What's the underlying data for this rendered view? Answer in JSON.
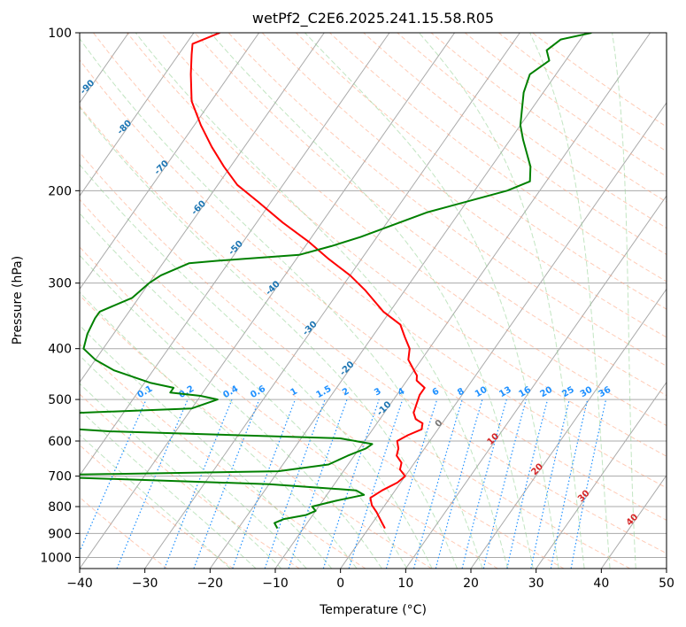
{
  "chart_data": {
    "type": "skew-t",
    "title": "wetPf2_C2E6.2025.241.15.58.R05",
    "xlabel": "Temperature (°C)",
    "ylabel": "Pressure (hPa)",
    "xlim": [
      -40,
      50
    ],
    "ylim": [
      1050,
      100
    ],
    "x_ticks": [
      -40,
      -30,
      -20,
      -10,
      0,
      10,
      20,
      30,
      40,
      50
    ],
    "x_tick_labels": [
      "−40",
      "−30",
      "−20",
      "−10",
      "0",
      "10",
      "20",
      "30",
      "40",
      "50"
    ],
    "y_ticks": [
      100,
      200,
      300,
      400,
      500,
      600,
      700,
      800,
      900,
      1000
    ],
    "y_tick_labels": [
      "100",
      "200",
      "300",
      "400",
      "500",
      "600",
      "700",
      "800",
      "900",
      "1000"
    ],
    "series": [
      {
        "name": "Temperature",
        "color": "#ff0000",
        "points": [
          [
            2.5,
            880
          ],
          [
            1.5,
            860
          ],
          [
            -0.5,
            820
          ],
          [
            -2,
            795
          ],
          [
            -3,
            770
          ],
          [
            -2,
            745
          ],
          [
            -0.5,
            720
          ],
          [
            0,
            700
          ],
          [
            -1.5,
            680
          ],
          [
            -2,
            660
          ],
          [
            -3.5,
            640
          ],
          [
            -4,
            620
          ],
          [
            -5,
            600
          ],
          [
            -4,
            585
          ],
          [
            -2.5,
            570
          ],
          [
            -3,
            555
          ],
          [
            -4.5,
            545
          ],
          [
            -5.5,
            530
          ],
          [
            -6,
            510
          ],
          [
            -6.5,
            490
          ],
          [
            -6.5,
            475
          ],
          [
            -8.5,
            460
          ],
          [
            -9,
            450
          ],
          [
            -10,
            440
          ],
          [
            -12,
            420
          ],
          [
            -13,
            400
          ],
          [
            -15,
            380
          ],
          [
            -17,
            360
          ],
          [
            -21,
            340
          ],
          [
            -26,
            310
          ],
          [
            -30,
            290
          ],
          [
            -35,
            270
          ],
          [
            -40,
            250
          ],
          [
            -46,
            230
          ],
          [
            -52,
            210
          ],
          [
            -57,
            195
          ],
          [
            -61,
            180
          ],
          [
            -65,
            165
          ],
          [
            -69,
            150
          ],
          [
            -73,
            135
          ],
          [
            -76,
            120
          ],
          [
            -78,
            110
          ],
          [
            -79,
            105
          ],
          [
            -76,
            100
          ]
        ]
      },
      {
        "name": "Dewpoint",
        "color": "#008000",
        "points": [
          [
            -14,
            880
          ],
          [
            -15,
            860
          ],
          [
            -14,
            845
          ],
          [
            -11,
            830
          ],
          [
            -10,
            815
          ],
          [
            -11,
            800
          ],
          [
            -8,
            780
          ],
          [
            -4.3,
            760
          ],
          [
            -6,
            745
          ],
          [
            -20,
            725
          ],
          [
            -50,
            705
          ],
          [
            -54,
            700
          ],
          [
            -50,
            695
          ],
          [
            -20,
            685
          ],
          [
            -13,
            665
          ],
          [
            -11,
            640
          ],
          [
            -9,
            620
          ],
          [
            -8.5,
            608
          ],
          [
            -14,
            593
          ],
          [
            -50,
            575
          ],
          [
            -65,
            560
          ],
          [
            -65,
            545
          ],
          [
            -60,
            532
          ],
          [
            -40,
            520
          ],
          [
            -37,
            500
          ],
          [
            -40,
            492
          ],
          [
            -45,
            485
          ],
          [
            -45,
            475
          ],
          [
            -49,
            465
          ],
          [
            -56,
            440
          ],
          [
            -60,
            420
          ],
          [
            -63,
            400
          ],
          [
            -64,
            375
          ],
          [
            -64.5,
            350
          ],
          [
            -64.5,
            340
          ],
          [
            -61,
            320
          ],
          [
            -60,
            300
          ],
          [
            -59,
            290
          ],
          [
            -56,
            275
          ],
          [
            -52,
            272
          ],
          [
            -40,
            265
          ],
          [
            -36,
            255
          ],
          [
            -32.5,
            245
          ],
          [
            -25,
            220
          ],
          [
            -15,
            200
          ],
          [
            -12.5,
            192
          ],
          [
            -14,
            180
          ],
          [
            -18,
            160
          ],
          [
            -20,
            150
          ],
          [
            -23,
            130
          ],
          [
            -24,
            120
          ],
          [
            -22.5,
            113
          ],
          [
            -24,
            108
          ],
          [
            -23,
            103
          ],
          [
            -19,
            100
          ]
        ]
      }
    ],
    "dry_adiabat_labels": [
      "-100",
      "-90",
      "-80",
      "-70",
      "-60",
      "-50",
      "-40",
      "-30",
      "-20",
      "-10",
      "0",
      "10",
      "20",
      "30",
      "40"
    ],
    "mixing_ratio_labels": [
      "0.1",
      "0.2",
      "0.4",
      "0.6",
      "1",
      "1.5",
      "2",
      "3",
      "4",
      "6",
      "8",
      "10",
      "13",
      "16",
      "20",
      "25",
      "30",
      "36"
    ],
    "mixing_ratio_values": [
      0.1,
      0.2,
      0.4,
      0.6,
      1,
      1.5,
      2,
      3,
      4,
      6,
      8,
      10,
      13,
      16,
      20,
      25,
      30,
      36
    ],
    "colors": {
      "isotherm": "#aaaaaa",
      "isobar": "#aaaaaa",
      "dry_adiabat": "#ffa07a",
      "moist_adiabat": "#90d090",
      "mixing_ratio": "#1e90ff",
      "dry_adiabat_label": "#1f77b4",
      "theta_label": "#d62728"
    },
    "grid": true
  }
}
